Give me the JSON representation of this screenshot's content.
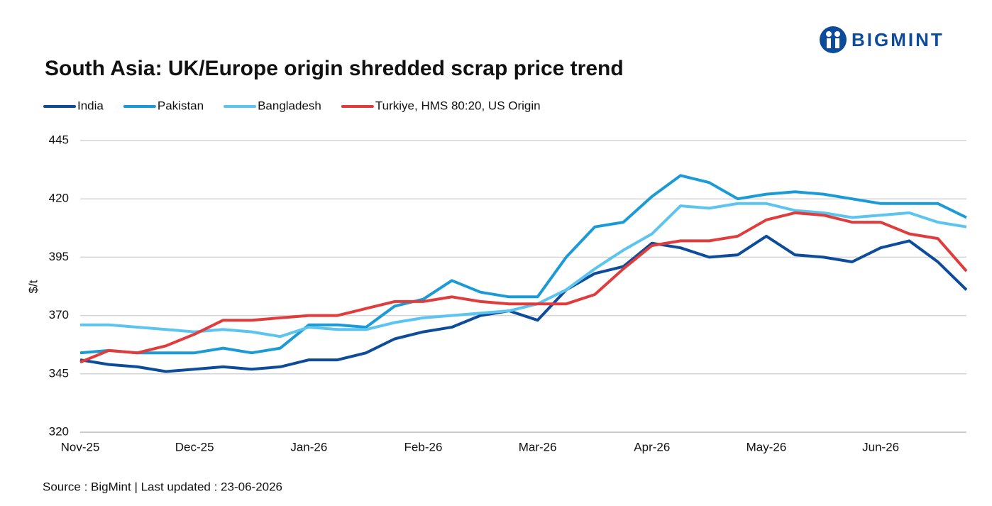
{
  "logo": "BIGMINT",
  "source": "Source : BigMint | Last updated : 23-06-2026",
  "chart_data": {
    "type": "line",
    "title": "South Asia: UK/Europe origin shredded scrap price trend",
    "y_label": "$/t",
    "categories": [
      "Nov-25",
      null,
      null,
      null,
      "Dec-25",
      null,
      null,
      null,
      "Jan-26",
      null,
      null,
      null,
      "Feb-26",
      null,
      null,
      null,
      "Mar-26",
      null,
      null,
      null,
      "Apr-26",
      null,
      null,
      null,
      "May-26",
      null,
      null,
      null,
      "Jun-26",
      null,
      null,
      null
    ],
    "series": [
      {
        "name": "India",
        "color": "#0d4c9b",
        "values": [
          351,
          349,
          348,
          346,
          347,
          348,
          347,
          348,
          351,
          351,
          354,
          360,
          363,
          365,
          370,
          372,
          368,
          381,
          388,
          391,
          401,
          399,
          395,
          396,
          404,
          396,
          395,
          393,
          399,
          402,
          393,
          381
        ]
      },
      {
        "name": "Pakistan",
        "color": "#1a9bd7",
        "values": [
          354,
          355,
          354,
          354,
          354,
          356,
          354,
          356,
          366,
          366,
          365,
          374,
          377,
          385,
          380,
          378,
          378,
          395,
          408,
          410,
          421,
          430,
          427,
          420,
          422,
          423,
          422,
          420,
          418,
          418,
          418,
          412
        ]
      },
      {
        "name": "Bangladesh",
        "color": "#5bc4ef",
        "values": [
          366,
          366,
          365,
          364,
          363,
          364,
          363,
          361,
          365,
          364,
          364,
          367,
          369,
          370,
          371,
          372,
          375,
          381,
          390,
          398,
          405,
          417,
          416,
          418,
          418,
          415,
          414,
          412,
          413,
          414,
          410,
          408
        ]
      },
      {
        "name": "Turkiye, HMS 80:20, US Origin",
        "color": "#e03c3c",
        "values": [
          350,
          355,
          354,
          357,
          362,
          368,
          368,
          369,
          370,
          370,
          373,
          376,
          376,
          378,
          376,
          375,
          375,
          375,
          379,
          390,
          400,
          402,
          402,
          404,
          411,
          414,
          413,
          410,
          410,
          405,
          403,
          389
        ]
      }
    ],
    "ylim": [
      320,
      445
    ],
    "yticks": [
      320,
      345,
      370,
      395,
      420,
      445
    ],
    "grid": true,
    "legend": "top-left"
  }
}
